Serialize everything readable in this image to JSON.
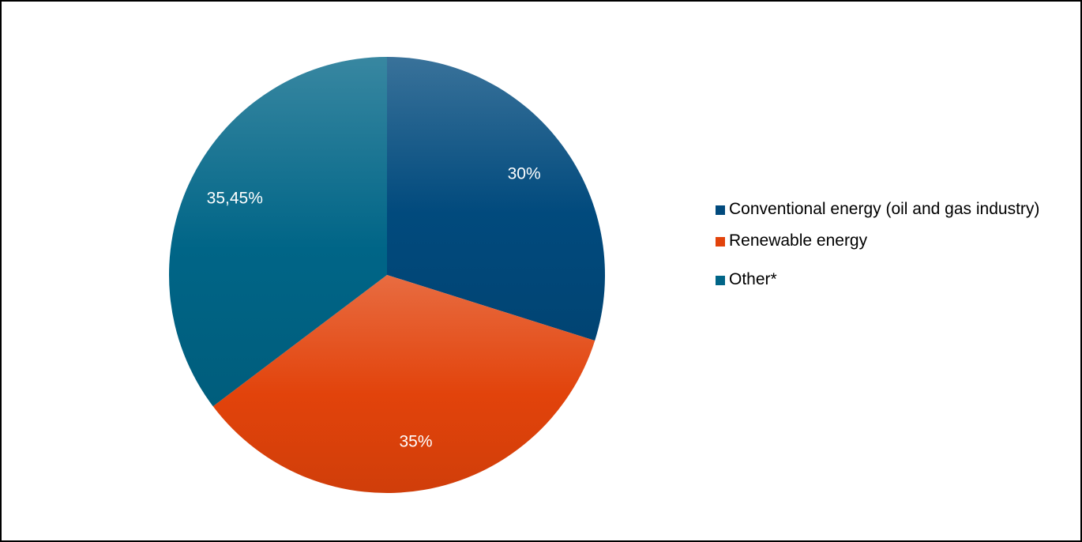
{
  "chart_data": {
    "type": "pie",
    "title": "",
    "legend_position": "right",
    "series": [
      {
        "name": "Conventional energy (oil and gas industry)",
        "value": 30,
        "label": "30%",
        "color": "#014A7D"
      },
      {
        "name": "Renewable energy",
        "value": 35,
        "label": "35%",
        "color": "#E2430B"
      },
      {
        "name": "Other*",
        "value": 35.45,
        "label": "35,45%",
        "color": "#006587"
      }
    ]
  }
}
